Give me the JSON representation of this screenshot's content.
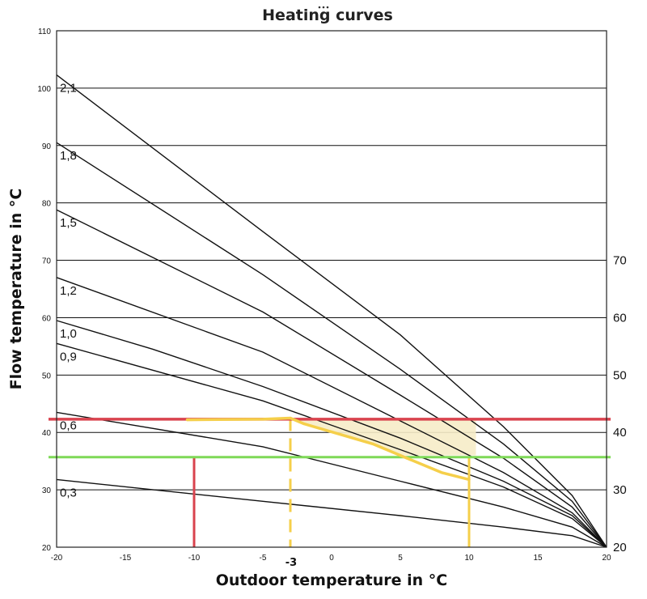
{
  "chart_data": {
    "type": "line",
    "title": "Heating curves",
    "xlabel": "Outdoor temperature in °C",
    "ylabel": "Flow temperature in °C",
    "xlim": [
      -20,
      20
    ],
    "ylim": [
      20,
      110
    ],
    "x_ticks": [
      "-20",
      "-15",
      "-10",
      "-5",
      "0",
      "5",
      "10",
      "15",
      "20"
    ],
    "y_ticks": [
      "20",
      "30",
      "40",
      "50",
      "60",
      "70",
      "80",
      "90",
      "100",
      "110"
    ],
    "right_y_ticks": [
      "20",
      "30",
      "40",
      "50",
      "60",
      "70"
    ],
    "grid": "horizontal",
    "series": [
      {
        "name": "2,1",
        "points": [
          [
            -20,
            102.3
          ],
          [
            -5,
            75
          ],
          [
            5,
            57
          ],
          [
            12.5,
            41
          ],
          [
            17.5,
            29
          ],
          [
            20,
            20
          ]
        ]
      },
      {
        "name": "1,8",
        "points": [
          [
            -20,
            90.5
          ],
          [
            -5,
            67.5
          ],
          [
            5,
            51
          ],
          [
            12.5,
            38
          ],
          [
            17.5,
            28
          ],
          [
            20,
            20
          ]
        ]
      },
      {
        "name": "1,5",
        "points": [
          [
            -20,
            78.8
          ],
          [
            -5,
            61
          ],
          [
            5,
            46.5
          ],
          [
            12.5,
            35.5
          ],
          [
            17.5,
            27
          ],
          [
            20,
            20
          ]
        ]
      },
      {
        "name": "1,2",
        "points": [
          [
            -20,
            67
          ],
          [
            -5,
            54
          ],
          [
            5,
            42
          ],
          [
            12.5,
            33
          ],
          [
            17.5,
            26
          ],
          [
            20,
            20
          ]
        ]
      },
      {
        "name": "1,0",
        "points": [
          [
            -20,
            59.5
          ],
          [
            -13,
            54.5
          ],
          [
            -5,
            48
          ],
          [
            5,
            39
          ],
          [
            12.5,
            31.5
          ],
          [
            17.5,
            25.5
          ],
          [
            20,
            20
          ]
        ]
      },
      {
        "name": "0,9",
        "points": [
          [
            -20,
            55.5
          ],
          [
            -5,
            45.5
          ],
          [
            5,
            37
          ],
          [
            12.5,
            30.5
          ],
          [
            17.5,
            25
          ],
          [
            20,
            20
          ]
        ]
      },
      {
        "name": "0,6",
        "points": [
          [
            -20,
            43.5
          ],
          [
            -5,
            37.5
          ],
          [
            5,
            31.5
          ],
          [
            12.5,
            27
          ],
          [
            17.5,
            23.5
          ],
          [
            20,
            20
          ]
        ]
      },
      {
        "name": "0,3",
        "points": [
          [
            -20,
            31.8
          ],
          [
            -5,
            28
          ],
          [
            5,
            25.5
          ],
          [
            12.5,
            23.5
          ],
          [
            17.5,
            22
          ],
          [
            20,
            20
          ]
        ]
      }
    ],
    "annotations": {
      "red_horizontal_y": 42.3,
      "green_horizontal_y": 35.7,
      "red_vertical_x": -10,
      "yellow_vertical_x": 10,
      "yellow_dashed_x": -3,
      "yellow_curve": [
        [
          -10.5,
          42.2
        ],
        [
          -5,
          42.3
        ],
        [
          -3,
          42.5
        ],
        [
          -2,
          41.5
        ],
        [
          3,
          38
        ],
        [
          5,
          36
        ],
        [
          8,
          33
        ],
        [
          10,
          31.8
        ]
      ],
      "shaded_region": [
        [
          -3,
          42.3
        ],
        [
          10.5,
          42.3
        ],
        [
          10.5,
          36
        ],
        [
          5,
          36
        ],
        [
          3,
          38
        ],
        [
          -2,
          41.5
        ]
      ],
      "marker_text": "-3",
      "colors": {
        "red": "#d9434e",
        "green": "#7ed957",
        "yellow": "#f5cf4a",
        "shade": "#f6ecc8"
      }
    }
  }
}
